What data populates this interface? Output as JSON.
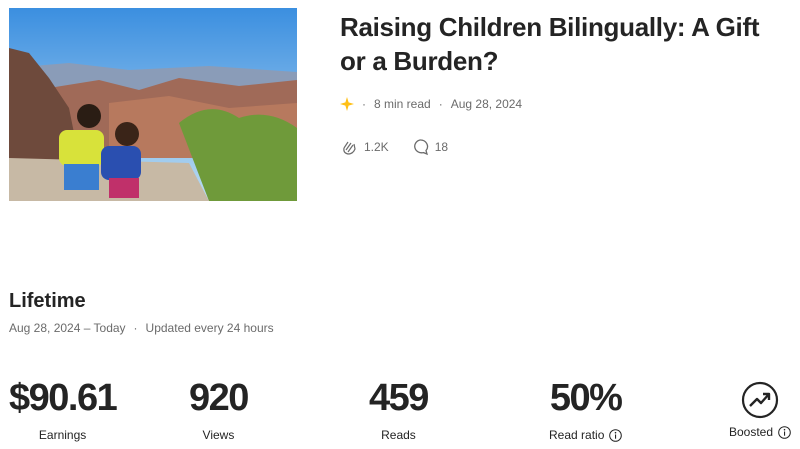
{
  "story": {
    "title": "Raising Children Bilingually: A Gift or a Burden?",
    "read_time": "8 min read",
    "date": "Aug 28, 2024",
    "claps": "1.2K",
    "responses": "18"
  },
  "lifetime": {
    "heading": "Lifetime",
    "range": "Aug 28, 2024 – Today",
    "update_note": "Updated every 24 hours"
  },
  "stats": [
    {
      "value": "$90.61",
      "label": "Earnings"
    },
    {
      "value": "920",
      "label": "Views"
    },
    {
      "value": "459",
      "label": "Reads"
    },
    {
      "value": "50%",
      "label": "Read ratio"
    },
    {
      "label": "Boosted"
    }
  ]
}
